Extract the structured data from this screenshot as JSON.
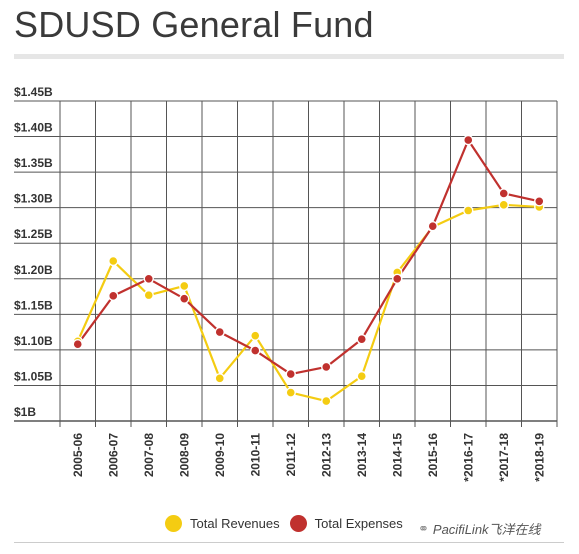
{
  "page": {
    "title": "SDUSD General Fund"
  },
  "legend": {
    "revenues": "Total Revenues",
    "expenses": "Total Expenses"
  },
  "watermark": {
    "text": "PacifiLink飞洋在线",
    "icon": "wechat-icon"
  },
  "colors": {
    "revenues": "#f4cc12",
    "expenses": "#c0312e",
    "grid": "#555555",
    "text": "#333333"
  },
  "chart_data": {
    "type": "line",
    "title": "SDUSD General Fund",
    "xlabel": "",
    "ylabel": "",
    "categories": [
      "2005-06",
      "2006-07",
      "2007-08",
      "2008-09",
      "2009-10",
      "2010-11",
      "2011-12",
      "2012-13",
      "2013-14",
      "2014-15",
      "2015-16",
      "*2016-17",
      "*2017-18",
      "*2018-19"
    ],
    "ylim": [
      1.0,
      1.45
    ],
    "yticks": [
      1.0,
      1.05,
      1.1,
      1.15,
      1.2,
      1.25,
      1.3,
      1.35,
      1.4,
      1.45
    ],
    "ytick_labels": [
      "$1B",
      "$1.05B",
      "$1.10B",
      "$1.15B",
      "$1.20B",
      "$1.25B",
      "$1.30B",
      "$1.35B",
      "$1.40B",
      "$1.45B"
    ],
    "grid": true,
    "legend_position": "bottom",
    "series": [
      {
        "name": "Total Revenues",
        "color": "#f4cc12",
        "values": [
          1.112,
          1.225,
          1.177,
          1.19,
          1.06,
          1.12,
          1.04,
          1.028,
          1.063,
          1.209,
          1.273,
          1.296,
          1.304,
          1.301
        ]
      },
      {
        "name": "Total Expenses",
        "color": "#c0312e",
        "values": [
          1.108,
          1.176,
          1.2,
          1.172,
          1.125,
          1.099,
          1.066,
          1.076,
          1.115,
          1.2,
          1.274,
          1.395,
          1.32,
          1.309
        ]
      }
    ]
  }
}
